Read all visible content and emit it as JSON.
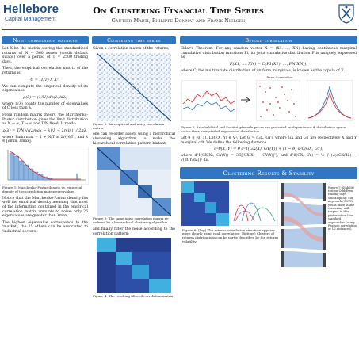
{
  "header": {
    "brand": "Hellebore",
    "brand_sub": "Capital Management",
    "title": "On Clustering Financial Time Series",
    "authors": "Gautier Marti, Philippe Donnat and Frank Nielsen"
  },
  "col1": {
    "section_title": "Noisy correlation matrices",
    "intro": "Let X be the matrix storing the standardized returns of N = 560 assets (credit default swaps) over a period of T = 2500 trading days.",
    "p2": "Then, the empirical correlation matrix of the returns is",
    "eq1": "C = (1/T) X Xᵀ.",
    "p3": "We can compute the empirical density of its eigenvalues",
    "eq2": "ρ(λ) = (1/N) dn(λ)/dλ,",
    "p4": "where n(λ) counts the number of eigenvalues of C less than λ.",
    "p5": "From random matrix theory, the Marchenko-Pastur distribution gives the limit distribution as N → ∞, T → ∞ and T/N fixed. It reads:",
    "eq3": "ρ(λ) = T/N √((λmax − λ)(λ − λmin)) / 2πλ,",
    "p6": "where λmin max = 1 + N/T ± 2√(N/T), and λ ∈ [λmin, λmax].",
    "fig1_caption": "Figure 1: Marchenko-Pastur density vs. empirical density of the correlation matrix eigenvalues",
    "p7": "Notice that the Marchenko-Pastur density fits well the empirical density meaning that most of the information contained in the empirical correlation matrix amounts to noise: only 26 eigenvalues are greater than λmax.",
    "p8": "The highest eigenvalue corresponds to the 'market', the 25 others can be associated to 'industrial sectors'."
  },
  "col2": {
    "section_title": "Clustering time series",
    "p1": "Given a correlation matrix of the returns,",
    "fig2_caption": "Figure 2: An empirical and noisy correlation matrix",
    "p2": "one can re-order assets using a hierarchical clustering algorithm to make the hierarchical correlation pattern blatant,",
    "fig3_caption": "Figure 3: The same noisy correlation matrix re-ordered by a hierarchical clustering algorithm",
    "p3": "and finally filter the noise according to the correlation pattern:",
    "fig4_caption": "Figure 4: The resulting filtered correlation matrix"
  },
  "col3": {
    "section_title": "Beyond correlation",
    "sklar": "Sklar's Theorem. For any random vector X = (X1, ..., XN) having continuous marginal cumulative distribution functions Fi, its joint cumulative distribution F is uniquely expressed as",
    "eq_sklar": "F(X1, ..., XN) = C(F1(X1), ..., FN(XN)),",
    "p_sklar2": "where C, the multivariate distribution of uniform marginals, is known as the copula of X.",
    "plot_title": "Rank Correlation",
    "fig5_caption": "Figure 5: ArcelorMittal and Société générale prices are projected on dependence ⊕ distribution space; notice their heavy-tailed exponential distribution.",
    "p_def": "Let θ ∈ [0, 1]. Let (X, Y) ∈ V². Let G = (GX, GY), where GX and GY are respectively X and Y marginal cdf. We define the following distance",
    "eq_dist": "d²θ(X, Y) = θ d²1(GX(X), GY(Y)) + (1 − θ) d²0(GX, GY),",
    "p_where": "where d²1(GX(X), GY(Y)) = 3E[|GX(X) − GY(Y)|²], and d²0(GX, GY) = ½ ∫ (√(dGX/dλ) − √(dGY/dλ))² dλ.",
    "section2_title": "Clustering Results & Stability",
    "fig6_caption": "Figure 6: (Top) The returns correlation structure appears more clearly using rank correlation; (Bottom) Clusters of returns distributions can be partly described by the returns volatility.",
    "fig7_caption": "Figure 7: Stability test on Odd/Even trading days subsampling: our approach (GNPR) yields more stable clustering with respect to this perturbation than standard approaches (using Pearson correlation or L2 distances)."
  },
  "colors": {
    "accent": "#2f77c2",
    "brand": "#1d4f8a"
  }
}
